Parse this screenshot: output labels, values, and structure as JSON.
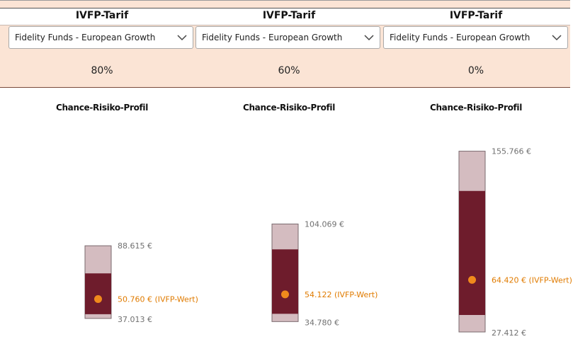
{
  "columns": [
    {
      "title": "IVFP-Tarif",
      "fund": "Fidelity Funds - European Growth",
      "share": "80%",
      "profile_title": "Chance-Risiko-Profil",
      "high": 88.615,
      "high_label": "88.615 €",
      "mid": 50.76,
      "mid_label": "50.760 €",
      "mid_suffix": "(IVFP-Wert)",
      "low": 37.013,
      "low_label": "37.013 €"
    },
    {
      "title": "IVFP-Tarif",
      "fund": "Fidelity Funds - European Growth",
      "share": "60%",
      "profile_title": "Chance-Risiko-Profil",
      "high": 104.069,
      "high_label": "104.069 €",
      "mid": 54.122,
      "mid_label": "54.122",
      "mid_suffix": "(IVFP-Wert)",
      "low": 34.78,
      "low_label": "34.780 €"
    },
    {
      "title": "IVFP-Tarif",
      "fund": "Fidelity Funds - European Growth",
      "share": "0%",
      "profile_title": "Chance-Risiko-Profil",
      "high": 155.766,
      "high_label": "155.766 €",
      "mid": 64.42,
      "mid_label": "64.420 €",
      "mid_suffix": "(IVFP-Wert)",
      "low": 27.412,
      "low_label": "27.412 €"
    }
  ],
  "colors": {
    "panel_bg": "#fbe4d5",
    "bar_light": "#d4bcc0",
    "bar_dark": "#6e1c2c",
    "marker": "#f08a1c",
    "value_text": "#707070",
    "ivfp_text": "#e07b00"
  },
  "icons": {
    "dropdown": "chevron-down-icon",
    "marker": "dot-marker"
  }
}
